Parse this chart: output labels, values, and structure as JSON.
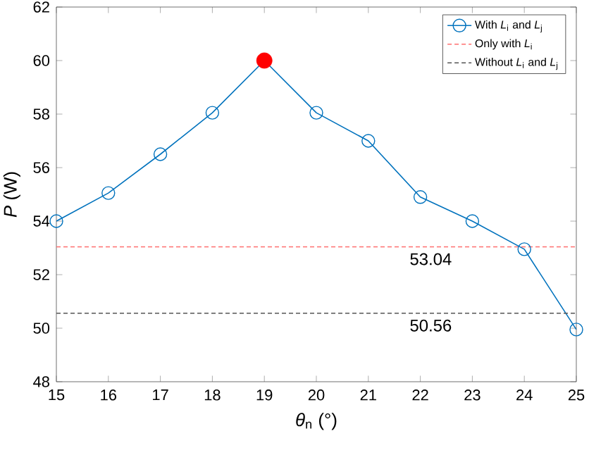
{
  "chart_data": {
    "type": "line",
    "xlabel": "*θ*$_{n}$ (°)",
    "ylabel": "*P* (W)",
    "xlim": [
      15,
      25
    ],
    "xticks": [
      15,
      16,
      17,
      18,
      19,
      20,
      21,
      22,
      23,
      24,
      25
    ],
    "ylim": [
      48,
      62
    ],
    "yticks": [
      48,
      50,
      52,
      54,
      56,
      58,
      60,
      62
    ],
    "series": [
      {
        "name": "With *L*$_{i}$ and *L*$_{j}$",
        "color": "#0072bd",
        "marker": "circle",
        "line_style": "solid",
        "x": [
          15,
          16,
          17,
          18,
          19,
          20,
          21,
          22,
          23,
          24,
          25
        ],
        "values": [
          54.0,
          55.05,
          56.5,
          58.05,
          60.0,
          58.05,
          57.0,
          54.9,
          54.0,
          52.95,
          49.95
        ]
      },
      {
        "name": "Only with *L*$_{i}$",
        "color": "#ff6f6f",
        "marker": "none",
        "line_style": "dashed",
        "x": [
          15,
          25
        ],
        "values": [
          53.04,
          53.04
        ]
      },
      {
        "name": "Without *L*$_{i}$ and *L*$_{j}$",
        "color": "#555555",
        "marker": "none",
        "line_style": "dashed",
        "x": [
          15,
          25
        ],
        "values": [
          50.56,
          50.56
        ]
      },
      {
        "type": "scatter",
        "color": "#ff0000",
        "marker": "circle",
        "x": [
          19
        ],
        "values": [
          60.0
        ]
      }
    ],
    "annotations": [
      {
        "text": "53.04",
        "x": 22.2,
        "y": 53.04
      },
      {
        "text": "50.56",
        "x": 22.2,
        "y": 50.56
      }
    ],
    "legend": "top right",
    "grid": false
  }
}
